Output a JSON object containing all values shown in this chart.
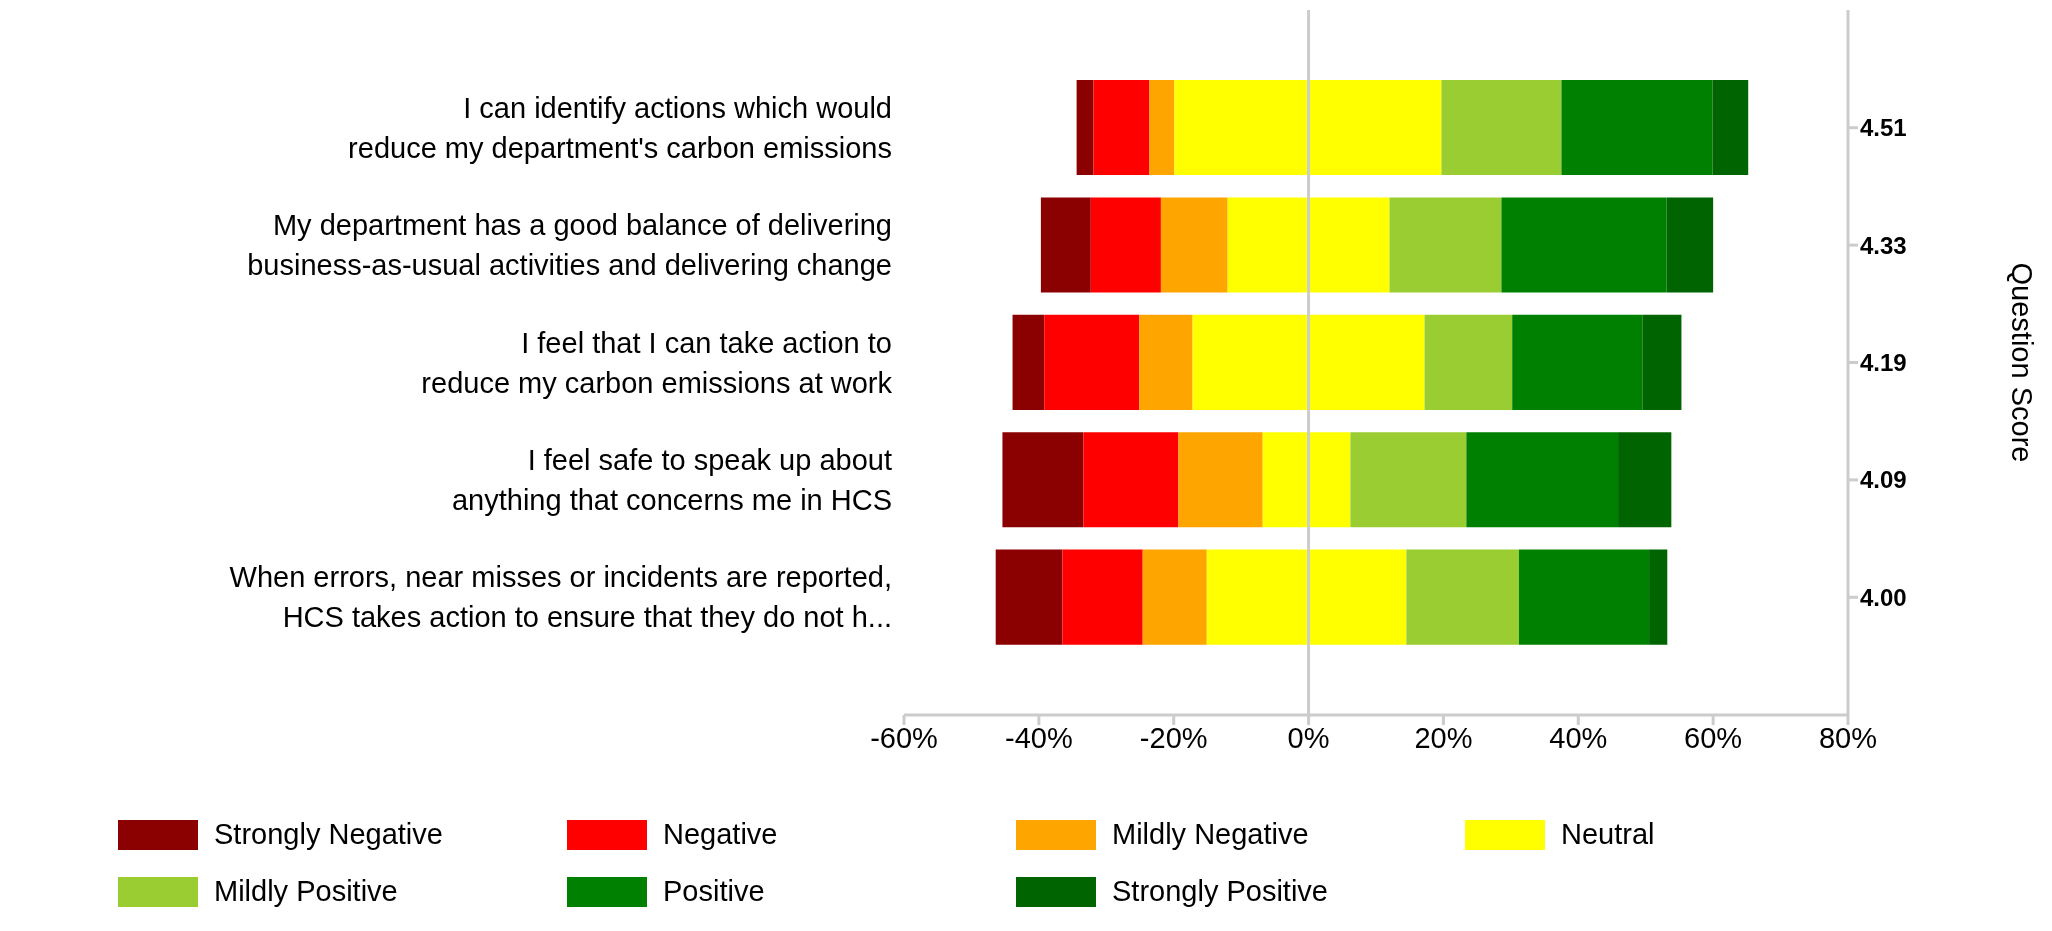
{
  "chart_data": {
    "type": "bar",
    "orientation": "horizontal",
    "categories": [
      "I can identify actions which would\nreduce my department's carbon emissions",
      "My department has a good balance of delivering\nbusiness-as-usual activities and delivering change",
      "I feel that I can take action to\nreduce my carbon emissions at work",
      "I feel safe to speak up about\nanything that concerns me in HCS",
      "When errors, near misses or incidents are reported,\nHCS takes action to ensure that they do not h..."
    ],
    "y2_categories": [
      "4.51",
      "4.33",
      "4.19",
      "4.09",
      "4.00"
    ],
    "y2label": "Question Score",
    "series": [
      {
        "name": "Strongly Negative",
        "color": "#8b0000",
        "base": [
          -34.4,
          -39.7,
          -43.9,
          -45.4,
          -46.4
        ],
        "values": [
          2.5,
          7.4,
          4.7,
          12.0,
          9.9
        ]
      },
      {
        "name": "Negative",
        "color": "#ff0000",
        "base": [
          -31.9,
          -32.3,
          -39.2,
          -33.4,
          -36.5
        ],
        "values": [
          8.3,
          10.4,
          14.1,
          14.1,
          11.9
        ]
      },
      {
        "name": "Mildly Negative",
        "color": "#ffa500",
        "base": [
          -23.6,
          -21.9,
          -25.1,
          -19.3,
          -24.6
        ],
        "values": [
          3.7,
          9.9,
          7.9,
          12.5,
          9.5
        ]
      },
      {
        "name": "Neutral",
        "color": "#ffff00",
        "base": [
          -19.9,
          -12.0,
          -17.2,
          -6.8,
          -15.1
        ],
        "values": [
          39.6,
          24.0,
          34.4,
          13.0,
          29.6
        ]
      },
      {
        "name": "Mildly Positive",
        "color": "#9acd32",
        "base": [
          19.7,
          12.0,
          17.2,
          6.2,
          14.5
        ],
        "values": [
          17.8,
          16.6,
          13.0,
          17.2,
          16.7
        ]
      },
      {
        "name": "Positive",
        "color": "#008000",
        "base": [
          37.5,
          28.6,
          30.2,
          23.4,
          31.2
        ],
        "values": [
          22.4,
          24.5,
          19.3,
          22.5,
          19.3
        ]
      },
      {
        "name": "Strongly Positive",
        "color": "#006400",
        "base": [
          59.9,
          53.1,
          49.5,
          45.9,
          50.5
        ],
        "values": [
          5.3,
          6.9,
          5.8,
          7.9,
          2.7
        ]
      }
    ],
    "xlim": [
      -60,
      80
    ],
    "xticks": [
      {
        "value": -60,
        "label": "-60%"
      },
      {
        "value": -40,
        "label": "-40%"
      },
      {
        "value": -20,
        "label": "-20%"
      },
      {
        "value": 0,
        "label": "0%"
      },
      {
        "value": 20,
        "label": "20%"
      },
      {
        "value": 40,
        "label": "40%"
      },
      {
        "value": 60,
        "label": "60%"
      },
      {
        "value": 80,
        "label": "80%"
      }
    ],
    "ref_lines": [
      {
        "axis": "x",
        "value": 0,
        "color": "#cccccc"
      }
    ],
    "legend": "bottom"
  }
}
